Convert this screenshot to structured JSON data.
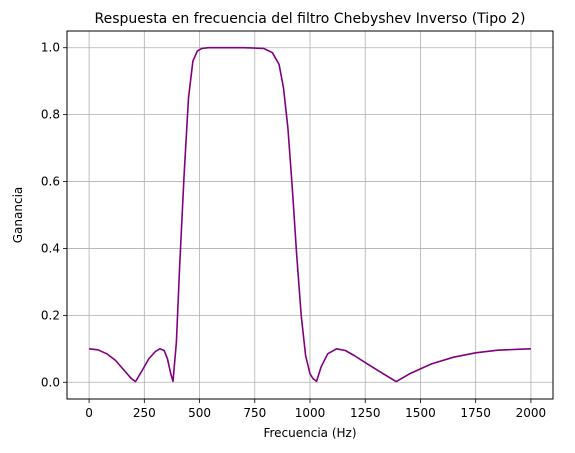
{
  "chart_data": {
    "type": "line",
    "title": "Respuesta en frecuencia del filtro Chebyshev Inverso (Tipo 2)",
    "xlabel": "Frecuencia (Hz)",
    "ylabel": "Ganancia",
    "xlim": [
      -100,
      2100
    ],
    "ylim": [
      -0.05,
      1.05
    ],
    "x_ticks": [
      0,
      250,
      500,
      750,
      1000,
      1250,
      1500,
      1750,
      2000
    ],
    "x_tick_labels": [
      "0",
      "250",
      "500",
      "750",
      "1000",
      "1250",
      "1500",
      "1750",
      "2000"
    ],
    "y_ticks": [
      0.0,
      0.2,
      0.4,
      0.6,
      0.8,
      1.0
    ],
    "y_tick_labels": [
      "0.0",
      "0.2",
      "0.4",
      "0.6",
      "0.8",
      "1.0"
    ],
    "grid": true,
    "series": [
      {
        "color": "#800080",
        "x": [
          0,
          40,
          80,
          120,
          160,
          190,
          210,
          240,
          270,
          300,
          320,
          340,
          355,
          370,
          380,
          395,
          410,
          430,
          450,
          470,
          490,
          510,
          540,
          600,
          700,
          790,
          830,
          860,
          880,
          900,
          920,
          940,
          960,
          980,
          1000,
          1015,
          1030,
          1050,
          1080,
          1120,
          1160,
          1200,
          1260,
          1320,
          1390,
          1450,
          1550,
          1650,
          1750,
          1850,
          1950,
          2000
        ],
        "y": [
          0.1,
          0.097,
          0.085,
          0.065,
          0.035,
          0.012,
          0.002,
          0.035,
          0.07,
          0.092,
          0.1,
          0.095,
          0.07,
          0.025,
          0.003,
          0.12,
          0.35,
          0.62,
          0.85,
          0.96,
          0.99,
          0.998,
          1.0,
          1.0,
          1.0,
          0.998,
          0.985,
          0.95,
          0.88,
          0.76,
          0.58,
          0.38,
          0.2,
          0.08,
          0.025,
          0.01,
          0.003,
          0.045,
          0.085,
          0.1,
          0.095,
          0.08,
          0.055,
          0.03,
          0.002,
          0.025,
          0.055,
          0.075,
          0.088,
          0.096,
          0.099,
          0.1
        ]
      }
    ]
  }
}
